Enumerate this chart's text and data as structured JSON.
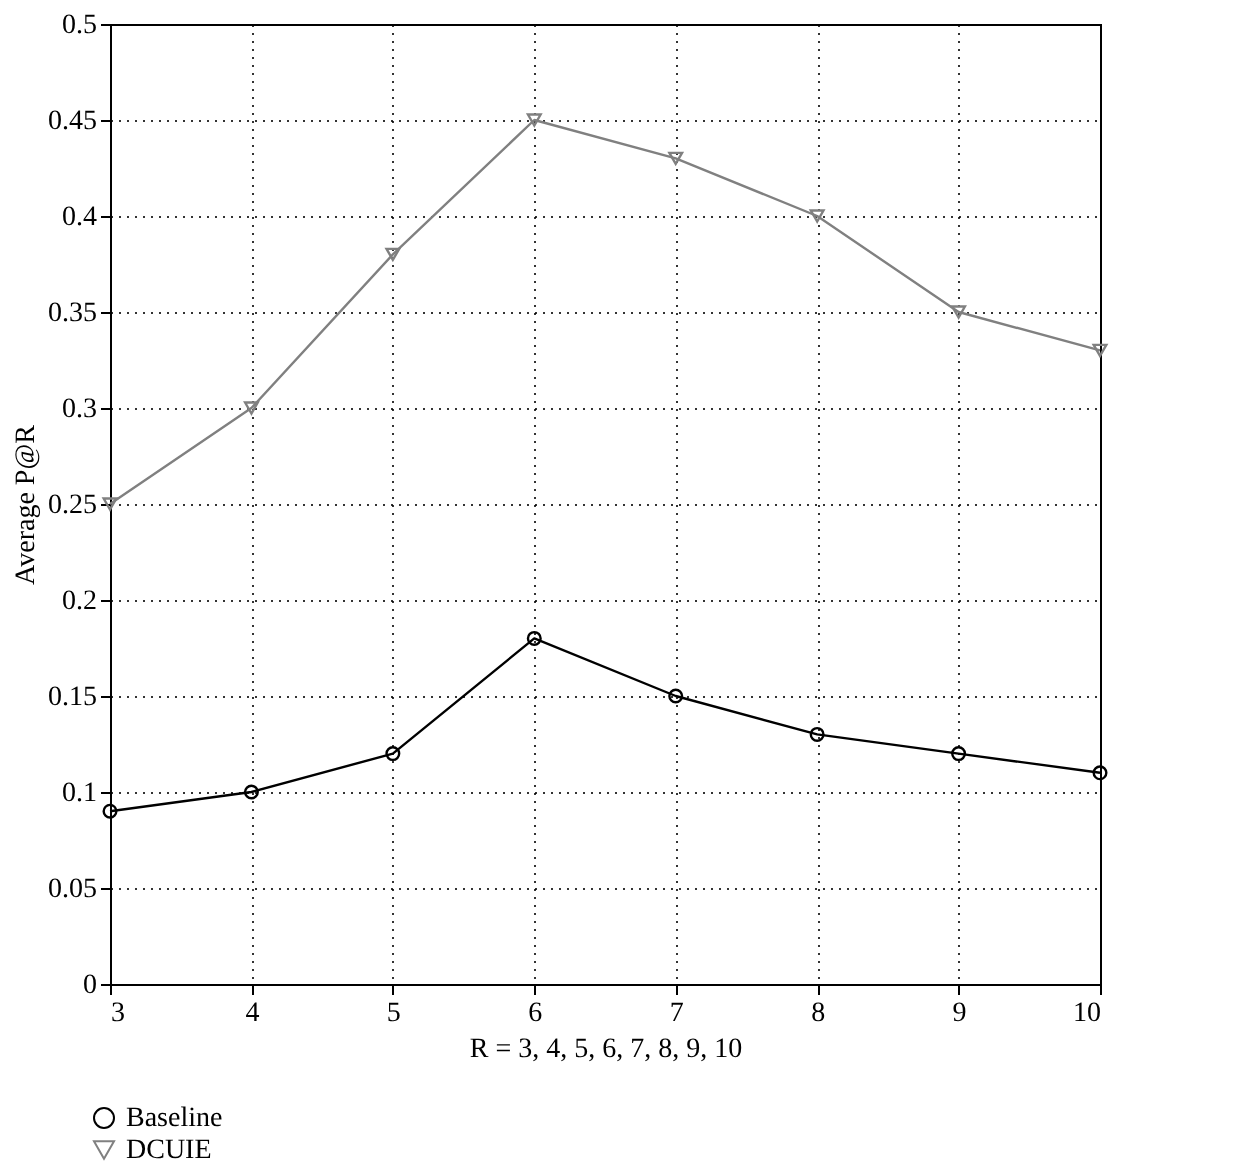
{
  "chart_data": {
    "type": "line",
    "xlabel": "R = 3, 4, 5, 6, 7, 8, 9, 10",
    "ylabel": "Average P@R",
    "x": [
      3,
      4,
      5,
      6,
      7,
      8,
      9,
      10
    ],
    "series": [
      {
        "name": "Baseline",
        "color": "#000000",
        "marker": "circle",
        "values": [
          0.09,
          0.1,
          0.12,
          0.18,
          0.15,
          0.13,
          0.12,
          0.11
        ]
      },
      {
        "name": "DCUIE",
        "color": "#808080",
        "marker": "triangle",
        "values": [
          0.25,
          0.3,
          0.38,
          0.45,
          0.43,
          0.4,
          0.35,
          0.33
        ]
      }
    ],
    "xlim": [
      3,
      10
    ],
    "xticks": [
      3,
      4,
      5,
      6,
      7,
      8,
      9,
      10
    ],
    "ylim": [
      0,
      0.5
    ],
    "yticks": [
      0,
      0.05,
      0.1,
      0.15,
      0.2,
      0.25,
      0.3,
      0.35,
      0.4,
      0.45,
      0.5
    ],
    "grid": true,
    "legend": "bottom left",
    "line_style": "solid"
  }
}
